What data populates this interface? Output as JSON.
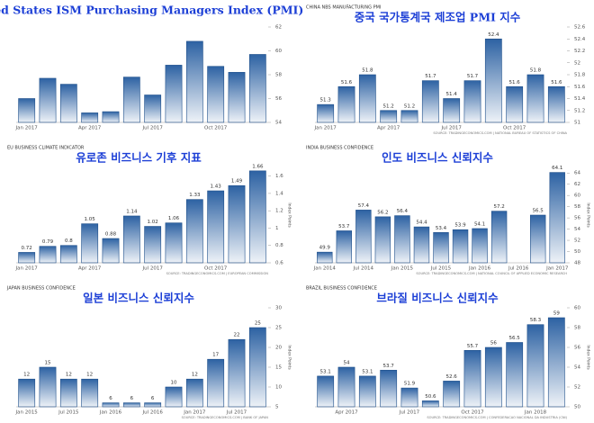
{
  "chart_data": [
    {
      "type": "bar",
      "title": "United States ISM Purchasing Managers Index (PMI)",
      "categories": [
        "Jan 2017",
        null,
        null,
        "Apr 2017",
        null,
        null,
        "Jul 2017",
        null,
        null,
        "Oct 2017",
        null,
        null
      ],
      "values": [
        56.0,
        57.7,
        57.2,
        54.8,
        54.9,
        57.8,
        56.3,
        58.8,
        60.8,
        58.7,
        58.2,
        59.7
      ],
      "color": "#2d62a3",
      "ylim": [
        54,
        62
      ],
      "yticks": [
        54,
        56,
        58,
        60,
        62
      ],
      "data_labels": false,
      "grid": false
    },
    {
      "type": "bar",
      "header": "CHINA NBS MANUFACTURING PMI",
      "title": "중국 국가통계국 제조업 PMI 지수",
      "categories": [
        "Jan 2017",
        null,
        null,
        "Apr 2017",
        null,
        null,
        "Jul 2017",
        null,
        null,
        "Oct 2017",
        null,
        null
      ],
      "values": [
        51.3,
        51.6,
        51.8,
        51.2,
        51.2,
        51.7,
        51.4,
        51.7,
        52.4,
        51.6,
        51.8,
        51.6
      ],
      "color": "#2d62a3",
      "ylim": [
        51,
        52.6
      ],
      "yticks": [
        51,
        51.2,
        51.4,
        51.6,
        51.8,
        52,
        52.2,
        52.4,
        52.6
      ],
      "data_labels": true,
      "grid": false,
      "source": "SOURCE: TRADINGECONOMICS.COM | NATIONAL BUREAU OF STATISTICS OF CHINA"
    },
    {
      "type": "bar",
      "header": "EU BUSINESS CLIMATE INDICATOR",
      "title": "유로존 비즈니스 기후 지표",
      "categories": [
        "Jan 2017",
        null,
        null,
        "Apr 2017",
        null,
        null,
        "Jul 2017",
        null,
        null,
        "Oct 2017",
        null,
        null
      ],
      "values": [
        0.72,
        0.79,
        0.8,
        1.05,
        0.88,
        1.14,
        1.02,
        1.06,
        1.33,
        1.43,
        1.49,
        1.66
      ],
      "color": "#2d62a3",
      "ylim": [
        0.6,
        1.7
      ],
      "yticks": [
        0.6,
        0.8,
        1,
        1.2,
        1.4,
        1.6
      ],
      "data_labels": true,
      "grid": false,
      "y_label": "Index Points",
      "source": "SOURCE: TRADINGECONOMICS.COM | EUROPEAN COMMISSION"
    },
    {
      "type": "bar",
      "header": "INDIA BUSINESS CONFIDENCE",
      "title": "인도 비즈니스 신뢰지수",
      "categories": [
        "Jan 2014",
        null,
        "Jul 2014",
        null,
        "Jan 2015",
        null,
        "Jul 2015",
        null,
        "Jan 2016",
        null,
        "Jul 2016",
        null,
        "Jan 2017"
      ],
      "values": [
        49.9,
        53.7,
        57.4,
        56.2,
        56.4,
        54.4,
        53.4,
        53.9,
        54.1,
        57.2,
        null,
        56.5,
        64.1
      ],
      "color": "#2d62a3",
      "ylim": [
        48,
        65
      ],
      "yticks": [
        48,
        50,
        52,
        54,
        56,
        58,
        60,
        62,
        64
      ],
      "data_labels": true,
      "grid": false,
      "y_label": "Index Points",
      "source": "SOURCE: TRADINGECONOMICS.COM | NATIONAL COUNCIL OF APPLIED ECONOMIC RESEARCH"
    },
    {
      "type": "bar",
      "header": "JAPAN BUSINESS CONFIDENCE",
      "title": "일본 비즈니스 신뢰지수",
      "categories": [
        "Jan 2015",
        null,
        "Jul 2015",
        null,
        "Jan 2016",
        null,
        "Jul 2016",
        null,
        "Jan 2017",
        null,
        "Jul 2017",
        null
      ],
      "values": [
        12,
        15,
        12,
        12,
        6,
        6,
        6,
        10,
        12,
        17,
        22,
        25
      ],
      "color": "#2d62a3",
      "ylim": [
        5,
        30
      ],
      "yticks": [
        5,
        10,
        15,
        20,
        25,
        30
      ],
      "data_labels": true,
      "grid": false,
      "y_label": "Index Points",
      "source": "SOURCE: TRADINGECONOMICS.COM | BANK OF JAPAN"
    },
    {
      "type": "bar",
      "header": "BRAZIL BUSINESS CONFIDENCE",
      "title": "브라질 비즈니스 신뢰지수",
      "categories": [
        null,
        "Apr 2017",
        null,
        null,
        "Jul 2017",
        null,
        null,
        "Oct 2017",
        null,
        null,
        "Jan 2018",
        null
      ],
      "values": [
        53.1,
        54,
        53.1,
        53.7,
        51.9,
        50.6,
        52.6,
        55.7,
        56,
        56.5,
        58.3,
        59
      ],
      "color": "#2d62a3",
      "ylim": [
        50,
        60
      ],
      "yticks": [
        50,
        52,
        54,
        56,
        58,
        60
      ],
      "data_labels": true,
      "grid": false,
      "y_label": "Index Points",
      "source": "SOURCE: TRADINGECONOMICS.COM | CONFEDERACAO NACIONAL DA INDUSTRIA (CNI)"
    }
  ]
}
